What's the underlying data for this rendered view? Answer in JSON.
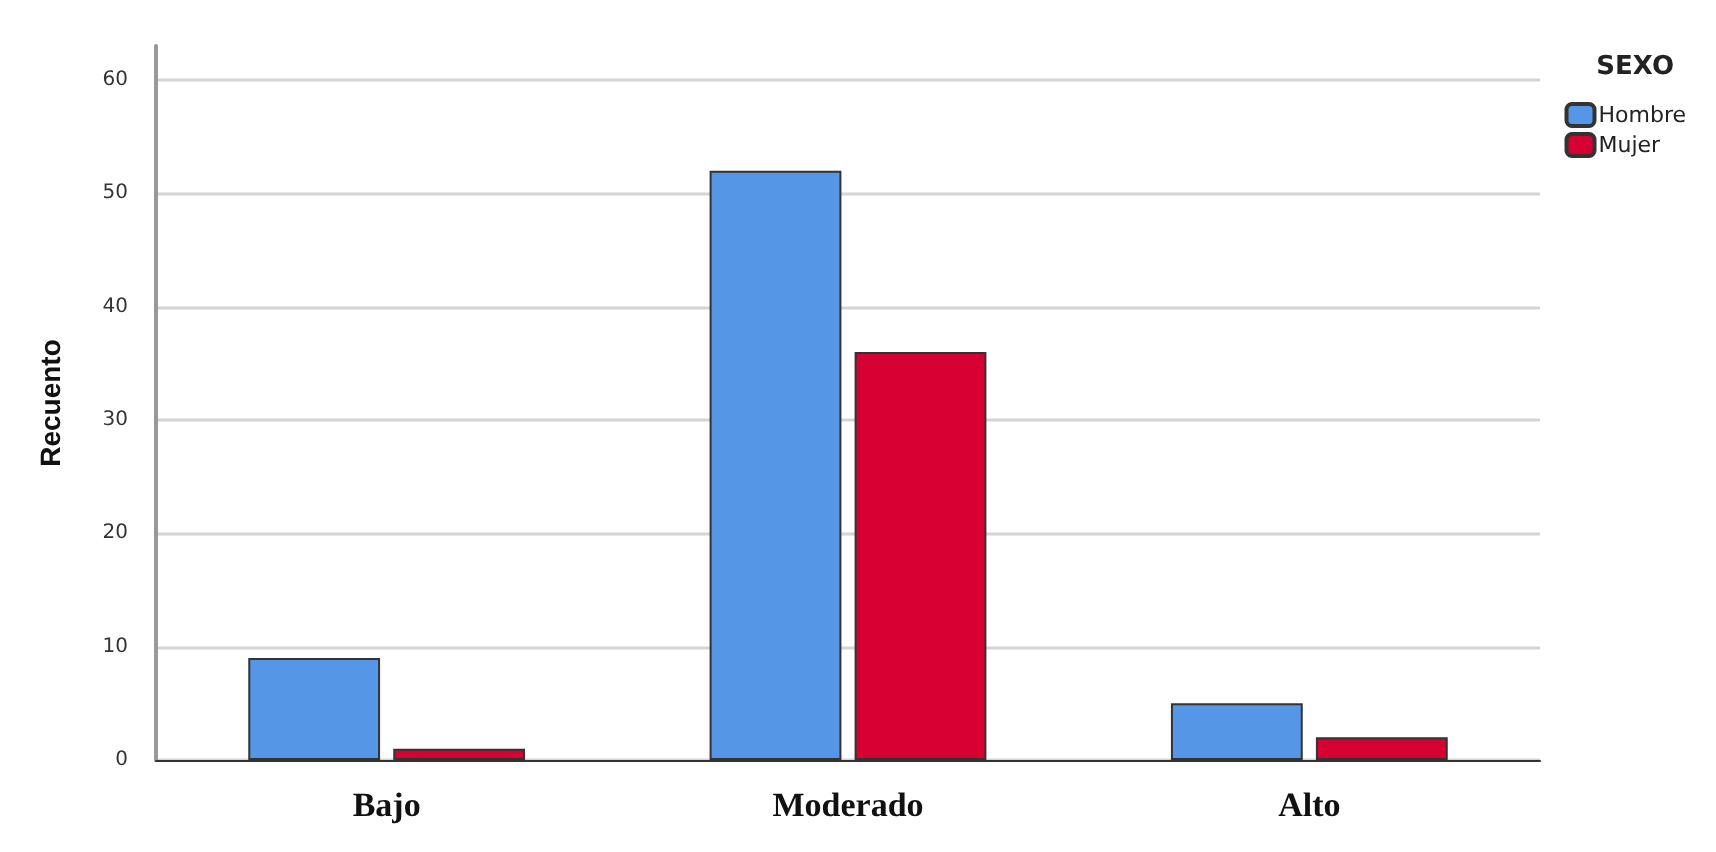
{
  "chart_data": {
    "type": "bar",
    "ylabel": "Recuento",
    "legend_title": "SEXO",
    "categories": [
      "Bajo",
      "Moderado",
      "Alto"
    ],
    "series": [
      {
        "name": "Hombre",
        "color": "#5596e6",
        "values": [
          9,
          52,
          5
        ]
      },
      {
        "name": "Mujer",
        "color": "#d60032",
        "values": [
          1,
          36,
          2
        ]
      }
    ],
    "ylim": [
      0,
      63
    ],
    "yticks": [
      0,
      10,
      20,
      30,
      40,
      50,
      60
    ],
    "grid": "y",
    "legend": "top right"
  }
}
